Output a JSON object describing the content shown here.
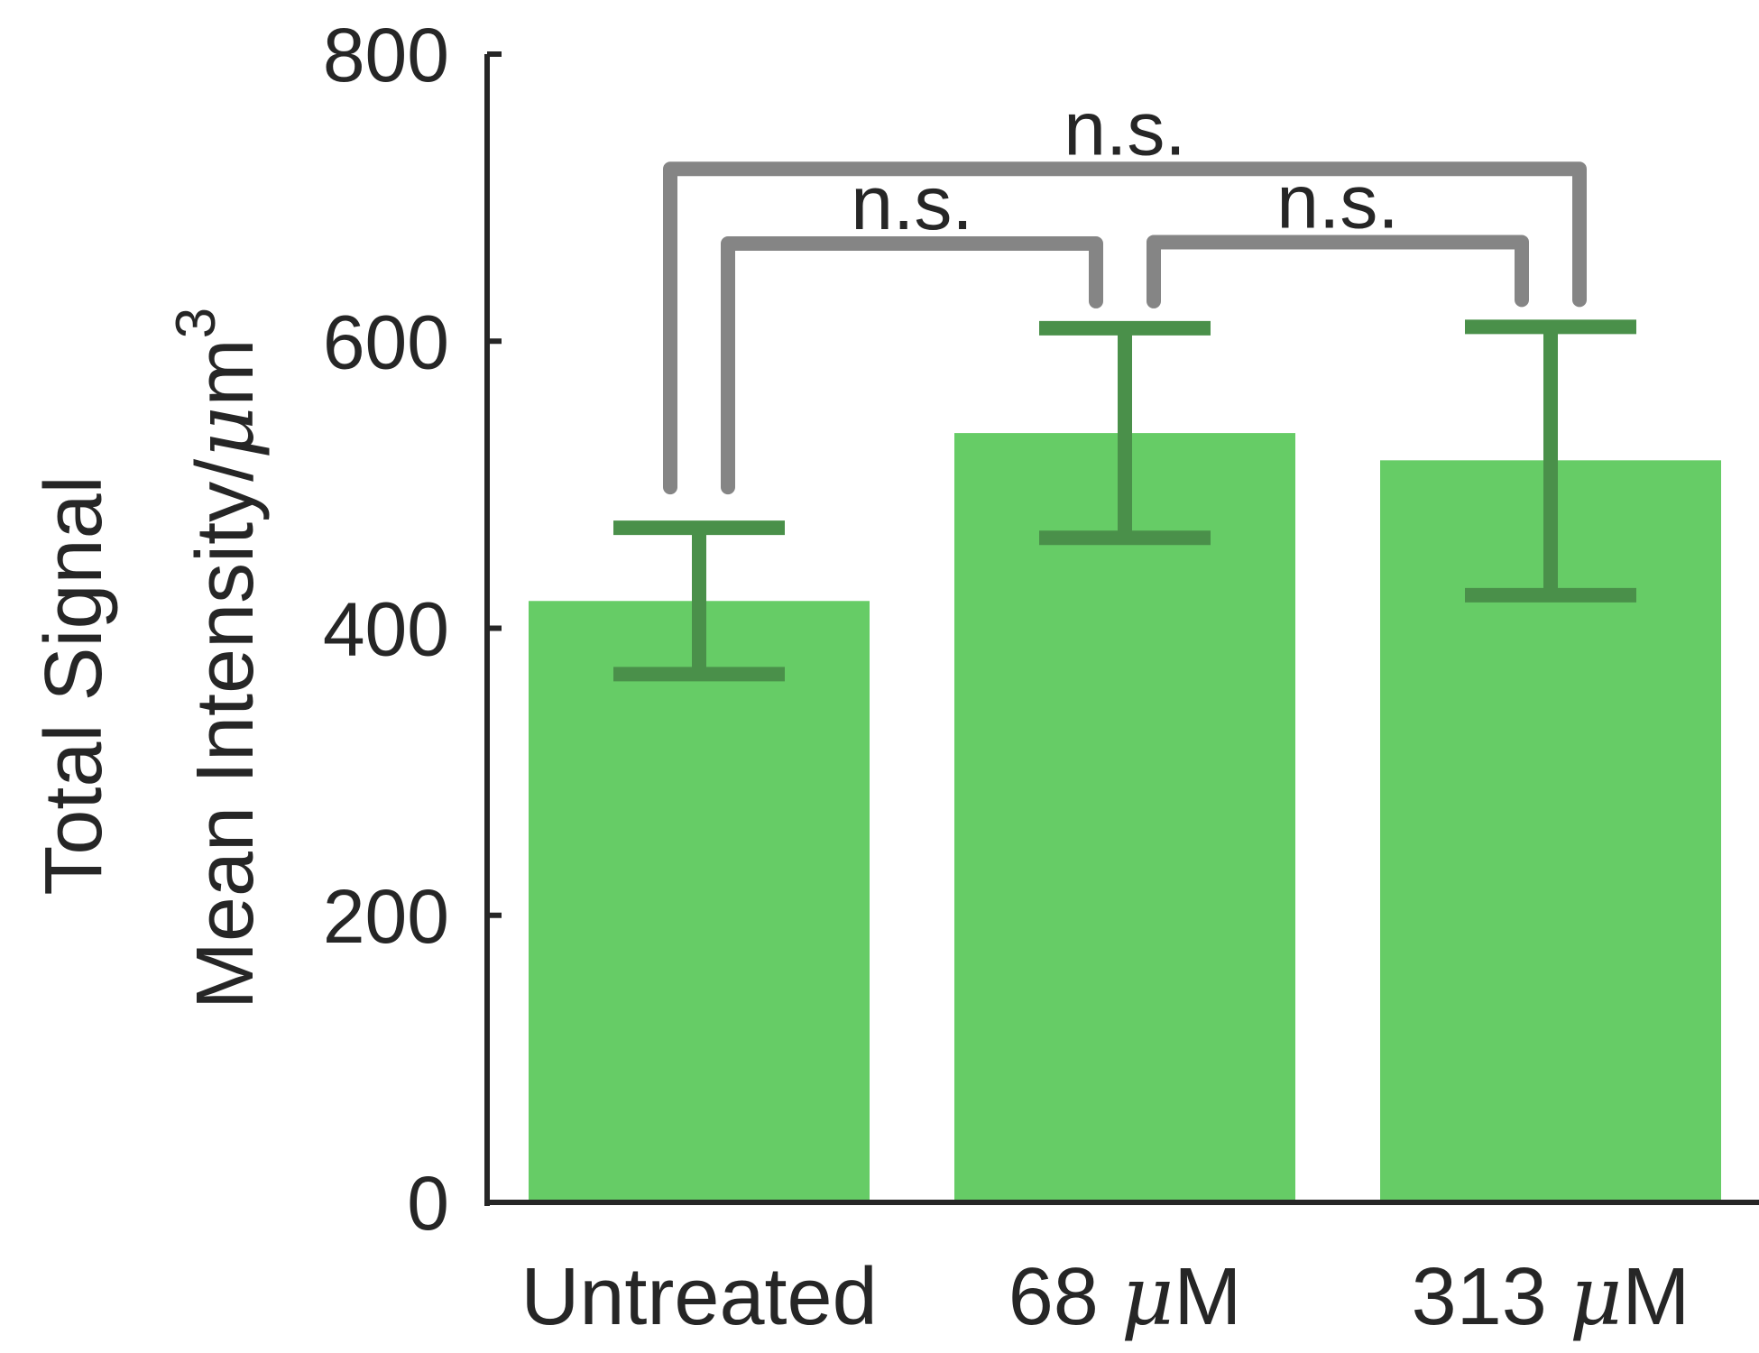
{
  "chart_data": {
    "type": "bar",
    "categories": [
      "Untreated",
      "68 μM",
      "313 μM"
    ],
    "category_parts": [
      {
        "pre": "Untreated",
        "mu": "",
        "post": ""
      },
      {
        "pre": "68 ",
        "mu": "μ",
        "post": "M"
      },
      {
        "pre": "313 ",
        "mu": "μ",
        "post": "M"
      }
    ],
    "values": [
      419,
      536,
      517
    ],
    "error_low": [
      368,
      463,
      423
    ],
    "error_high": [
      470,
      609,
      610
    ],
    "ylabel_line1": "Total Signal",
    "ylabel_line2_text": "Mean Intensity/",
    "ylabel_line2_mu": "μ",
    "ylabel_line2_unit": "m",
    "ylabel_line2_sup": "3",
    "ylim": [
      0,
      800
    ],
    "yticks": [
      0,
      200,
      400,
      600,
      800
    ],
    "grid": false,
    "significance": [
      {
        "from": 0,
        "to": 1,
        "label": "n.s.",
        "level": 668
      },
      {
        "from": 1,
        "to": 2,
        "label": "n.s.",
        "level": 669
      },
      {
        "from": 0,
        "to": 2,
        "label": "n.s.",
        "level": 720
      }
    ],
    "colors": {
      "bar": "#66cc66",
      "error_bar": "#4a904a",
      "bracket": "#858585",
      "axis": "#262626",
      "text": "#262626"
    }
  }
}
